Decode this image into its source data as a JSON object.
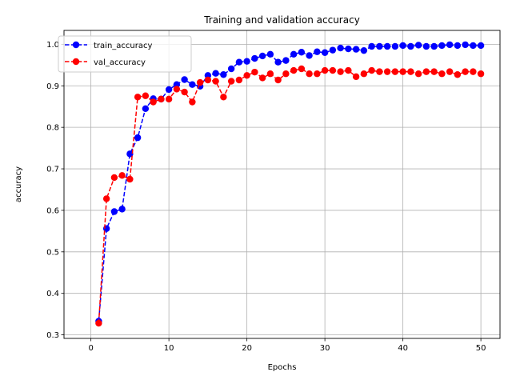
{
  "chart_data": {
    "type": "line",
    "title": "Training and validation accuracy",
    "xlabel": "Epochs",
    "ylabel": "accuracy",
    "xlim": [
      -3.45,
      52.45
    ],
    "ylim": [
      0.2915,
      1.0335
    ],
    "xticks": [
      0,
      10,
      20,
      30,
      40,
      50
    ],
    "yticks": [
      0.3,
      0.4,
      0.5,
      0.6,
      0.7,
      0.8,
      0.9,
      1.0
    ],
    "xtick_labels": [
      "0",
      "10",
      "20",
      "30",
      "40",
      "50"
    ],
    "ytick_labels": [
      "0.3",
      "0.4",
      "0.5",
      "0.6",
      "0.7",
      "0.8",
      "0.9",
      "1.0"
    ],
    "grid": true,
    "legend_position": "upper-left",
    "x": [
      1,
      2,
      3,
      4,
      5,
      6,
      7,
      8,
      9,
      10,
      11,
      12,
      13,
      14,
      15,
      16,
      17,
      18,
      19,
      20,
      21,
      22,
      23,
      24,
      25,
      26,
      27,
      28,
      29,
      30,
      31,
      32,
      33,
      34,
      35,
      36,
      37,
      38,
      39,
      40,
      41,
      42,
      43,
      44,
      45,
      46,
      47,
      48,
      49,
      50
    ],
    "series": [
      {
        "name": "train_accuracy",
        "color": "#0000ff",
        "linestyle": "dashed",
        "marker": "circle",
        "values": [
          0.333,
          0.556,
          0.597,
          0.603,
          0.736,
          0.775,
          0.845,
          0.869,
          0.868,
          0.891,
          0.903,
          0.915,
          0.903,
          0.899,
          0.925,
          0.93,
          0.927,
          0.941,
          0.957,
          0.959,
          0.966,
          0.972,
          0.976,
          0.957,
          0.961,
          0.976,
          0.981,
          0.973,
          0.982,
          0.98,
          0.986,
          0.991,
          0.989,
          0.988,
          0.985,
          0.995,
          0.995,
          0.995,
          0.995,
          0.997,
          0.995,
          0.998,
          0.995,
          0.995,
          0.997,
          0.999,
          0.997,
          0.999,
          0.997,
          0.997
        ]
      },
      {
        "name": "val_accuracy",
        "color": "#ff0000",
        "linestyle": "dashed",
        "marker": "circle",
        "values": [
          0.328,
          0.628,
          0.679,
          0.684,
          0.675,
          0.873,
          0.876,
          0.861,
          0.868,
          0.868,
          0.892,
          0.885,
          0.861,
          0.908,
          0.914,
          0.911,
          0.873,
          0.911,
          0.914,
          0.925,
          0.933,
          0.919,
          0.929,
          0.914,
          0.929,
          0.937,
          0.941,
          0.929,
          0.929,
          0.937,
          0.937,
          0.934,
          0.937,
          0.922,
          0.929,
          0.937,
          0.934,
          0.934,
          0.934,
          0.934,
          0.934,
          0.929,
          0.934,
          0.934,
          0.929,
          0.934,
          0.927,
          0.934,
          0.934,
          0.929
        ]
      }
    ]
  }
}
